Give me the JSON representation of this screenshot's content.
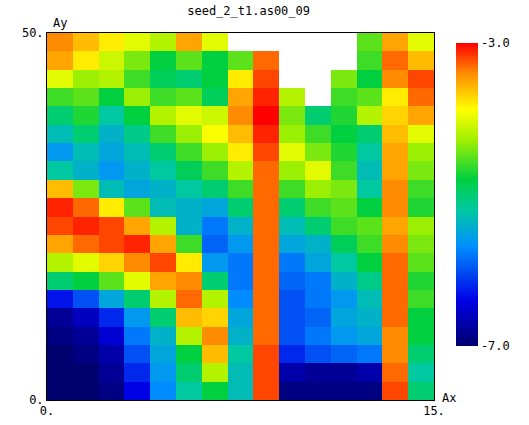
{
  "chart_data": {
    "type": "heatmap",
    "title": "seed_2_t1.as00_09",
    "x_label": "Ax",
    "y_label": "Ay",
    "xlim": [
      0,
      15
    ],
    "ylim": [
      0,
      50
    ],
    "xticks": [
      {
        "value": 0,
        "label": "0."
      },
      {
        "value": 15,
        "label": "15."
      }
    ],
    "yticks": [
      {
        "value": 0,
        "label": "0."
      },
      {
        "value": 50,
        "label": "50."
      }
    ],
    "x": [
      0.5,
      1.5,
      2.5,
      3.5,
      4.5,
      5.5,
      6.5,
      7.5,
      8.5,
      9.5,
      10.5,
      11.5,
      12.5,
      13.5,
      14.5
    ],
    "y": [
      1.25,
      3.75,
      6.25,
      8.75,
      11.25,
      13.75,
      16.25,
      18.75,
      21.25,
      23.75,
      26.25,
      28.75,
      31.25,
      33.75,
      36.25,
      38.75,
      41.25,
      43.75,
      46.25,
      48.75
    ],
    "z": [
      [
        -7.0,
        -7.0,
        -6.9,
        -6.4,
        -5.7,
        -5.2,
        -4.8,
        -5.3,
        -3.2,
        -6.9,
        -6.9,
        -6.9,
        -6.9,
        -3.2,
        -5.0
      ],
      [
        -7.0,
        -7.0,
        -6.8,
        -6.2,
        -5.6,
        -5.0,
        -4.2,
        -5.3,
        -3.2,
        -6.7,
        -6.8,
        -6.8,
        -6.7,
        -3.3,
        -5.2
      ],
      [
        -7.0,
        -6.9,
        -6.7,
        -6.0,
        -5.5,
        -4.8,
        -3.6,
        -5.2,
        -3.2,
        -6.2,
        -6.0,
        -5.9,
        -5.8,
        -3.4,
        -5.0
      ],
      [
        -6.9,
        -6.8,
        -6.5,
        -5.8,
        -5.4,
        -4.2,
        -3.4,
        -5.4,
        -3.3,
        -6.0,
        -5.8,
        -5.6,
        -5.5,
        -3.4,
        -4.8
      ],
      [
        -6.8,
        -6.6,
        -6.2,
        -5.6,
        -5.0,
        -3.6,
        -3.7,
        -5.5,
        -3.3,
        -6.0,
        -5.9,
        -5.5,
        -5.4,
        -3.3,
        -4.8
      ],
      [
        -6.3,
        -6.0,
        -5.5,
        -5.0,
        -4.2,
        -3.3,
        -4.2,
        -5.7,
        -3.3,
        -6.0,
        -5.8,
        -5.6,
        -5.3,
        -3.3,
        -4.6
      ],
      [
        -5.0,
        -4.8,
        -4.5,
        -4.0,
        -3.5,
        -3.4,
        -5.0,
        -5.8,
        -3.3,
        -5.9,
        -5.8,
        -5.4,
        -5.1,
        -3.3,
        -4.7
      ],
      [
        -4.2,
        -4.0,
        -3.7,
        -3.4,
        -3.2,
        -3.8,
        -5.6,
        -5.8,
        -3.3,
        -5.8,
        -5.5,
        -5.2,
        -4.8,
        -3.3,
        -4.5
      ],
      [
        -3.5,
        -3.3,
        -3.2,
        -3.1,
        -3.5,
        -4.6,
        -5.9,
        -5.6,
        -3.3,
        -5.5,
        -5.4,
        -4.9,
        -4.6,
        -3.4,
        -4.4
      ],
      [
        -3.2,
        -3.1,
        -3.2,
        -3.5,
        -4.2,
        -5.4,
        -5.8,
        -5.4,
        -3.3,
        -5.3,
        -5.0,
        -4.6,
        -4.5,
        -3.5,
        -4.3
      ],
      [
        -3.1,
        -3.3,
        -3.8,
        -4.5,
        -5.3,
        -5.4,
        -5.5,
        -5.0,
        -3.3,
        -5.0,
        -4.6,
        -4.5,
        -4.8,
        -3.4,
        -4.7
      ],
      [
        -3.6,
        -4.4,
        -5.3,
        -5.5,
        -5.4,
        -5.2,
        -5.0,
        -4.6,
        -3.3,
        -4.6,
        -4.3,
        -4.4,
        -5.2,
        -3.4,
        -4.6
      ],
      [
        -5.2,
        -5.4,
        -5.6,
        -5.4,
        -5.2,
        -4.9,
        -4.6,
        -4.2,
        -3.3,
        -4.3,
        -4.0,
        -4.6,
        -5.3,
        -3.5,
        -4.4
      ],
      [
        -5.6,
        -5.3,
        -5.5,
        -5.3,
        -5.0,
        -4.6,
        -4.3,
        -3.8,
        -3.2,
        -4.0,
        -4.4,
        -4.7,
        -5.2,
        -3.5,
        -4.3
      ],
      [
        -5.3,
        -5.0,
        -5.4,
        -5.1,
        -4.6,
        -4.3,
        -3.9,
        -3.6,
        -3.1,
        -4.3,
        -4.6,
        -4.8,
        -5.0,
        -3.6,
        -4.0
      ],
      [
        -5.0,
        -4.7,
        -5.2,
        -4.8,
        -4.2,
        -4.0,
        -4.1,
        -3.4,
        -3.0,
        -4.4,
        -5.0,
        -4.7,
        -4.2,
        -3.7,
        -3.5
      ],
      [
        -4.6,
        -4.5,
        -4.8,
        -4.3,
        -4.6,
        -4.5,
        -4.9,
        -3.5,
        -3.1,
        -4.2,
        null,
        -4.6,
        -4.5,
        -3.8,
        -3.3
      ],
      [
        -4.0,
        -4.3,
        -4.2,
        -4.6,
        -4.9,
        -5.0,
        -4.8,
        -3.8,
        -3.2,
        null,
        null,
        -4.4,
        -4.8,
        -3.4,
        -3.2
      ],
      [
        -3.5,
        -3.8,
        -4.1,
        -4.4,
        -4.8,
        -4.5,
        -4.8,
        -4.5,
        -3.3,
        null,
        null,
        null,
        -4.6,
        -3.3,
        -3.6
      ],
      [
        -3.4,
        -3.6,
        -3.8,
        -4.0,
        -4.2,
        -3.5,
        -4.0,
        null,
        null,
        null,
        null,
        null,
        -4.5,
        -3.5,
        -4.0
      ]
    ],
    "colorbar": {
      "range": [
        -7,
        -3
      ],
      "ticks": [
        {
          "value": -3,
          "label": "-3.0"
        },
        {
          "value": -7,
          "label": "-7.0"
        }
      ]
    }
  }
}
